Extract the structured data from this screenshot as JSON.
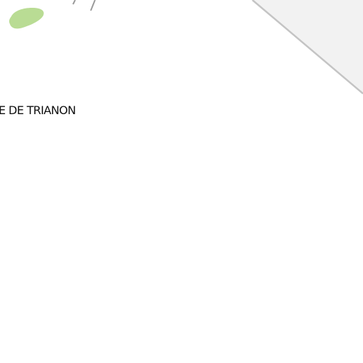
{
  "map": {
    "colors": {
      "background": "#ffffff",
      "gray_area": "#f2f2f2",
      "gray_area_border": "#c4c4c4",
      "green_area": "#b9dc94",
      "path_stroke": "#9a9a9a"
    },
    "labels": {
      "place": "E DE TRIANON"
    }
  }
}
